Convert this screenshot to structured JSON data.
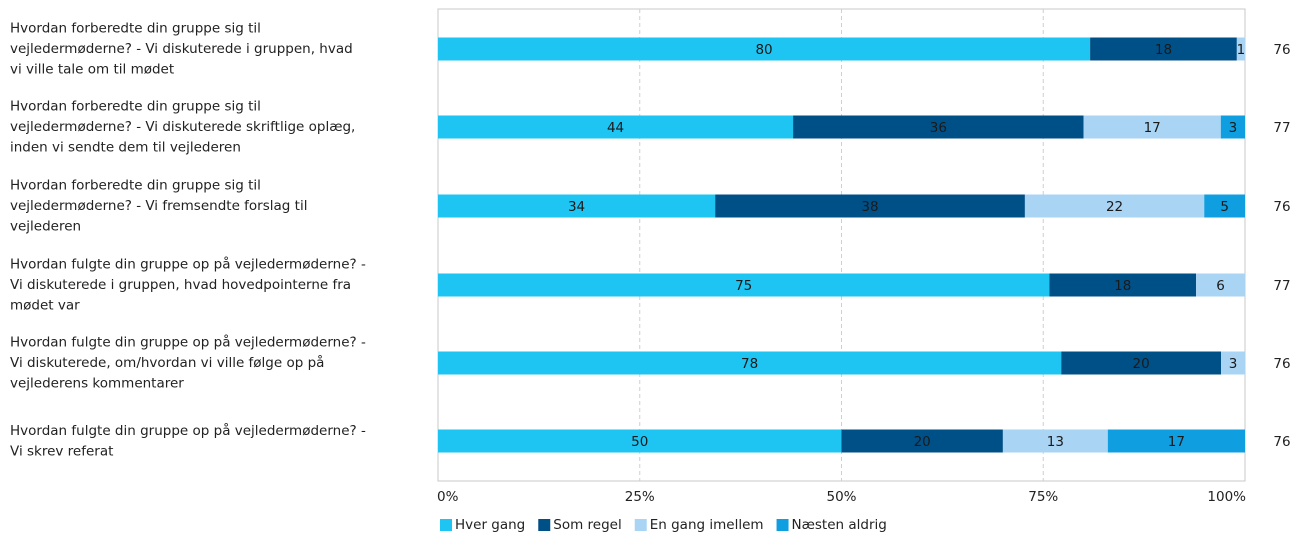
{
  "chart_data": {
    "type": "bar",
    "orientation": "horizontal",
    "stacked": "percent",
    "categories": [
      [
        "Hvordan forberedte din gruppe sig til",
        "vejledermøderne? - Vi diskuterede i gruppen, hvad",
        "vi ville tale om til mødet"
      ],
      [
        "Hvordan forberedte din gruppe sig til",
        "vejledermøderne? - Vi diskuterede skriftlige oplæg,",
        "inden vi sendte dem til vejlederen"
      ],
      [
        "Hvordan forberedte din gruppe sig til",
        "vejledermøderne? - Vi fremsendte forslag til",
        "vejlederen"
      ],
      [
        "Hvordan fulgte din gruppe op på vejledermøderne? -",
        "Vi diskuterede i gruppen, hvad hovedpointerne fra",
        "mødet var"
      ],
      [
        "Hvordan fulgte din gruppe op på vejledermøderne? -",
        "Vi diskuterede, om/hvordan vi ville følge op på",
        "vejlederens kommentarer"
      ],
      [
        "Hvordan fulgte din gruppe op på vejledermøderne? -",
        "Vi skrev referat"
      ]
    ],
    "series": [
      {
        "name": "Hver gang",
        "color": "#1ec4f2",
        "values": [
          80,
          44,
          34,
          75,
          78,
          50
        ]
      },
      {
        "name": "Som regel",
        "color": "#005088",
        "values": [
          18,
          36,
          38,
          18,
          20,
          20
        ]
      },
      {
        "name": "En gang imellem",
        "color": "#aad4f4",
        "values": [
          1,
          17,
          22,
          6,
          3,
          13
        ]
      },
      {
        "name": "Næsten aldrig",
        "color": "#0f9ee0",
        "values": [
          0,
          3,
          5,
          0,
          0,
          17
        ]
      }
    ],
    "data_labels": [
      [
        "80",
        "18",
        "1",
        ""
      ],
      [
        "44",
        "36",
        "17",
        "3"
      ],
      [
        "34",
        "38",
        "22",
        "5"
      ],
      [
        "75",
        "18",
        "6",
        ""
      ],
      [
        "78",
        "20",
        "3",
        ""
      ],
      [
        "50",
        "20",
        "13",
        "17"
      ]
    ],
    "n_values": [
      "76",
      "77",
      "76",
      "77",
      "76",
      "76"
    ],
    "xticks": [
      "0%",
      "25%",
      "50%",
      "75%",
      "100%"
    ],
    "xlim": [
      0,
      100
    ],
    "grid": "vertical dashed",
    "legend_position": "bottom-left"
  }
}
